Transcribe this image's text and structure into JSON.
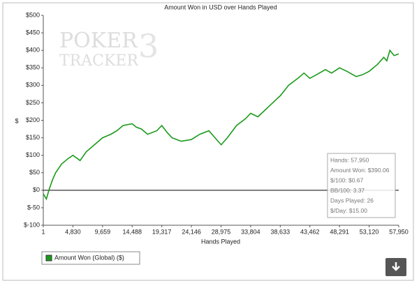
{
  "chart_data": {
    "type": "line",
    "title": "Amount Won in USD over Hands Played",
    "x_label": "Hands Played",
    "y_label": "$",
    "watermark": [
      "POKER",
      "TRACKER",
      "3"
    ],
    "xlim": [
      1,
      57950
    ],
    "ylim": [
      -100,
      500
    ],
    "grid": false,
    "zero_line": true,
    "xticks": [
      1,
      {
        "value": 4830,
        "label": "4,830"
      },
      {
        "value": 9659,
        "label": "9,659"
      },
      {
        "value": 14488,
        "label": "14,488"
      },
      {
        "value": 19317,
        "label": "19,317"
      },
      {
        "value": 24146,
        "label": "24,146"
      },
      {
        "value": 28975,
        "label": "28,975"
      },
      {
        "value": 33804,
        "label": "33,804"
      },
      {
        "value": 38633,
        "label": "38,633"
      },
      {
        "value": 43462,
        "label": "43,462"
      },
      {
        "value": 48291,
        "label": "48,291"
      },
      {
        "value": 53120,
        "label": "53,120"
      },
      {
        "value": 57950,
        "label": "57,950"
      }
    ],
    "yticks": [
      {
        "value": 500,
        "label": "$500"
      },
      {
        "value": 450,
        "label": "$450"
      },
      {
        "value": 400,
        "label": "$400"
      },
      {
        "value": 350,
        "label": "$350"
      },
      {
        "value": 300,
        "label": "$300"
      },
      {
        "value": 250,
        "label": "$250"
      },
      {
        "value": 200,
        "label": "$200"
      },
      {
        "value": 150,
        "label": "$150"
      },
      {
        "value": 100,
        "label": "$100"
      },
      {
        "value": 50,
        "label": "$50"
      },
      {
        "value": 0,
        "label": "$0"
      },
      {
        "value": -50,
        "label": "$-50"
      },
      {
        "value": -100,
        "label": "$-100"
      }
    ],
    "x": [
      1,
      500,
      1000,
      1500,
      2000,
      3000,
      4000,
      4830,
      6000,
      7000,
      8000,
      9000,
      9659,
      11000,
      12000,
      13000,
      14488,
      15200,
      16000,
      17000,
      18500,
      19317,
      20200,
      21000,
      22500,
      24146,
      25500,
      27000,
      28500,
      29000,
      30000,
      31500,
      33000,
      33804,
      35000,
      36500,
      38000,
      38633,
      40000,
      41500,
      42500,
      43462,
      44500,
      46000,
      47000,
      48291,
      49500,
      51000,
      52000,
      53120,
      54500,
      55500,
      56000,
      56500,
      57200,
      57950
    ],
    "series": [
      {
        "name": "Amount Won (Global) ($)",
        "color": "#1a9a1a",
        "values": [
          -10,
          -25,
          5,
          30,
          50,
          75,
          90,
          100,
          85,
          110,
          125,
          140,
          150,
          160,
          170,
          185,
          190,
          180,
          175,
          160,
          170,
          185,
          165,
          150,
          140,
          145,
          160,
          170,
          140,
          130,
          150,
          185,
          205,
          220,
          210,
          235,
          260,
          270,
          300,
          320,
          335,
          320,
          330,
          345,
          335,
          350,
          340,
          325,
          330,
          340,
          360,
          380,
          370,
          400,
          385,
          390.06
        ]
      }
    ],
    "annotations": [
      "Hands: 57,950",
      "Amount Won: $390.06",
      "$/100: $0.67",
      "BB/100: 3.37",
      "Days Played: 26",
      "$/Day: $15.00"
    ]
  }
}
